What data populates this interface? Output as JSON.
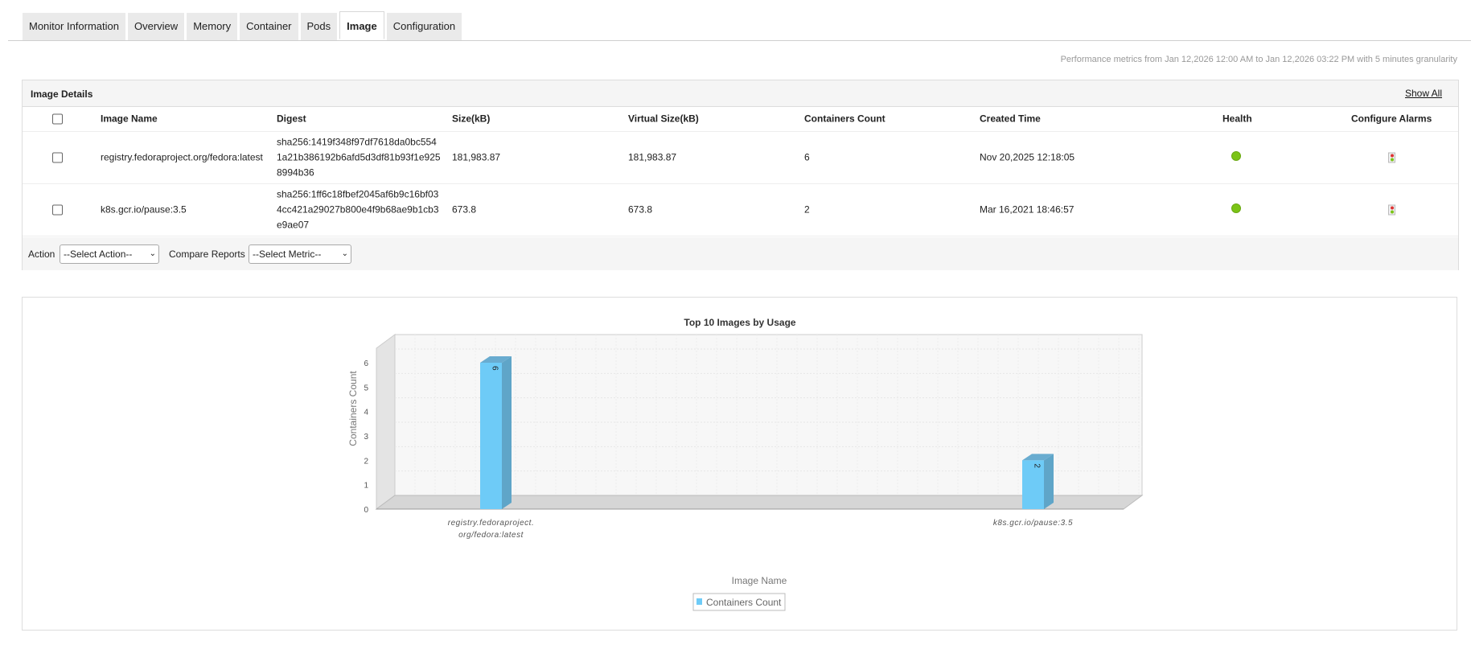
{
  "tabs": [
    {
      "label": "Monitor Information"
    },
    {
      "label": "Overview"
    },
    {
      "label": "Memory"
    },
    {
      "label": "Container"
    },
    {
      "label": "Pods"
    },
    {
      "label": "Image",
      "active": true
    },
    {
      "label": "Configuration"
    }
  ],
  "perf_text": "Performance metrics from Jan 12,2026 12:00 AM to Jan 12,2026 03:22 PM with 5 minutes granularity",
  "panel": {
    "title": "Image Details",
    "show_all": "Show All",
    "columns": [
      "Image Name",
      "Digest",
      "Size(kB)",
      "Virtual Size(kB)",
      "Containers Count",
      "Created Time",
      "Health",
      "Configure Alarms"
    ],
    "rows": [
      {
        "name": "registry.fedoraproject.org/fedora:latest",
        "digest": [
          "sha256:1419f348f97df7618da0bc554",
          "1a21b386192b6afd5d3df81b93f1e925",
          "8994b36"
        ],
        "size": "181,983.87",
        "vsize": "181,983.87",
        "count": "6",
        "created": "Nov 20,2025 12:18:05",
        "health": "clear",
        "health_color": "#7bc416"
      },
      {
        "name": "k8s.gcr.io/pause:3.5",
        "digest": [
          "sha256:1ff6c18fbef2045af6b9c16bf03",
          "4cc421a29027b800e4f9b68ae9b1cb3",
          "e9ae07"
        ],
        "size": "673.8",
        "vsize": "673.8",
        "count": "2",
        "created": "Mar 16,2021 18:46:57",
        "health": "clear",
        "health_color": "#7bc416"
      }
    ],
    "action_label": "Action",
    "action_select": "--Select Action--",
    "compare_label": "Compare Reports",
    "compare_select": "--Select Metric--"
  },
  "chart_data": {
    "type": "bar",
    "title": "Top 10 Images by Usage",
    "categories": [
      "registry.fedoraproject.org/fedora:latest",
      "k8s.gcr.io/pause:3.5"
    ],
    "category_labels": [
      [
        "registry.fedoraproject.",
        "org/fedora:latest"
      ],
      [
        "k8s.gcr.io/pause:3.5"
      ]
    ],
    "series": [
      {
        "name": "Containers Count",
        "values": [
          6,
          2
        ],
        "color": "#6ecbf7"
      }
    ],
    "xlabel": "Image Name",
    "ylabel": "Containers Count",
    "ylim": [
      0,
      6
    ],
    "yticks": [
      "0",
      "1",
      "2",
      "3",
      "4",
      "5",
      "6"
    ],
    "grid": true,
    "legend": "bottom-center",
    "three_d": true
  }
}
